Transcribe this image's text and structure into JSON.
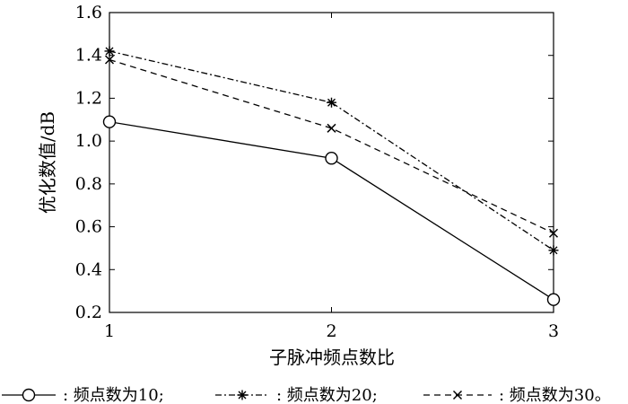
{
  "chart_data": {
    "type": "line",
    "xlabel": "子脉冲频点数比",
    "ylabel": "优化数值/dB",
    "x": [
      1,
      2,
      3
    ],
    "xlim": [
      1,
      3
    ],
    "ylim": [
      0.2,
      1.6
    ],
    "xticks": [
      1,
      2,
      3
    ],
    "yticks": [
      0.2,
      0.4,
      0.6,
      0.8,
      1.0,
      1.2,
      1.4,
      1.6
    ],
    "ytick_labels": [
      "0.2",
      "0.4",
      "0.6",
      "0.8",
      "1.0",
      "1.2",
      "1.4",
      "1.6"
    ],
    "grid": false,
    "legend_position": "bottom",
    "series": [
      {
        "name": "频点数为10",
        "values": [
          1.09,
          0.92,
          0.26
        ],
        "marker": "circle",
        "line_style": "solid",
        "color": "#000000"
      },
      {
        "name": "频点数为20",
        "values": [
          1.42,
          1.18,
          0.49
        ],
        "marker": "asterisk",
        "line_style": "dash-dot",
        "color": "#000000"
      },
      {
        "name": "频点数为30",
        "values": [
          1.38,
          1.06,
          0.57
        ],
        "marker": "cross",
        "line_style": "dashed",
        "color": "#000000"
      }
    ],
    "legend_separators": [
      ";",
      ";",
      "。"
    ]
  }
}
